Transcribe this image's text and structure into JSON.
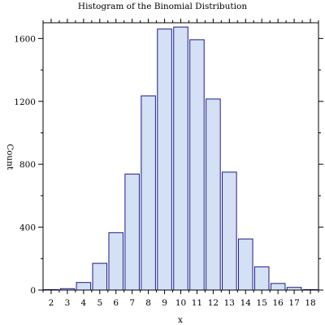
{
  "chart_data": {
    "type": "bar",
    "title": "Histogram of the Binomial Distribution",
    "xlabel": "x",
    "ylabel": "Count",
    "categories": [
      "2",
      "3",
      "4",
      "5",
      "6",
      "7",
      "8",
      "9",
      "10",
      "11",
      "12",
      "13",
      "14",
      "15",
      "16",
      "17",
      "18"
    ],
    "values": [
      3,
      9,
      48,
      170,
      365,
      738,
      1235,
      1660,
      1673,
      1592,
      1215,
      750,
      325,
      148,
      42,
      17,
      3
    ],
    "ylim": [
      0,
      1700
    ],
    "yticks": [
      0,
      400,
      800,
      1200,
      1600
    ],
    "ytick_labels": [
      "0",
      "400",
      "800",
      "1200",
      "1600"
    ],
    "grid": false,
    "bar_fill": "#d4e0f4",
    "bar_stroke": "#1a1a8c"
  }
}
